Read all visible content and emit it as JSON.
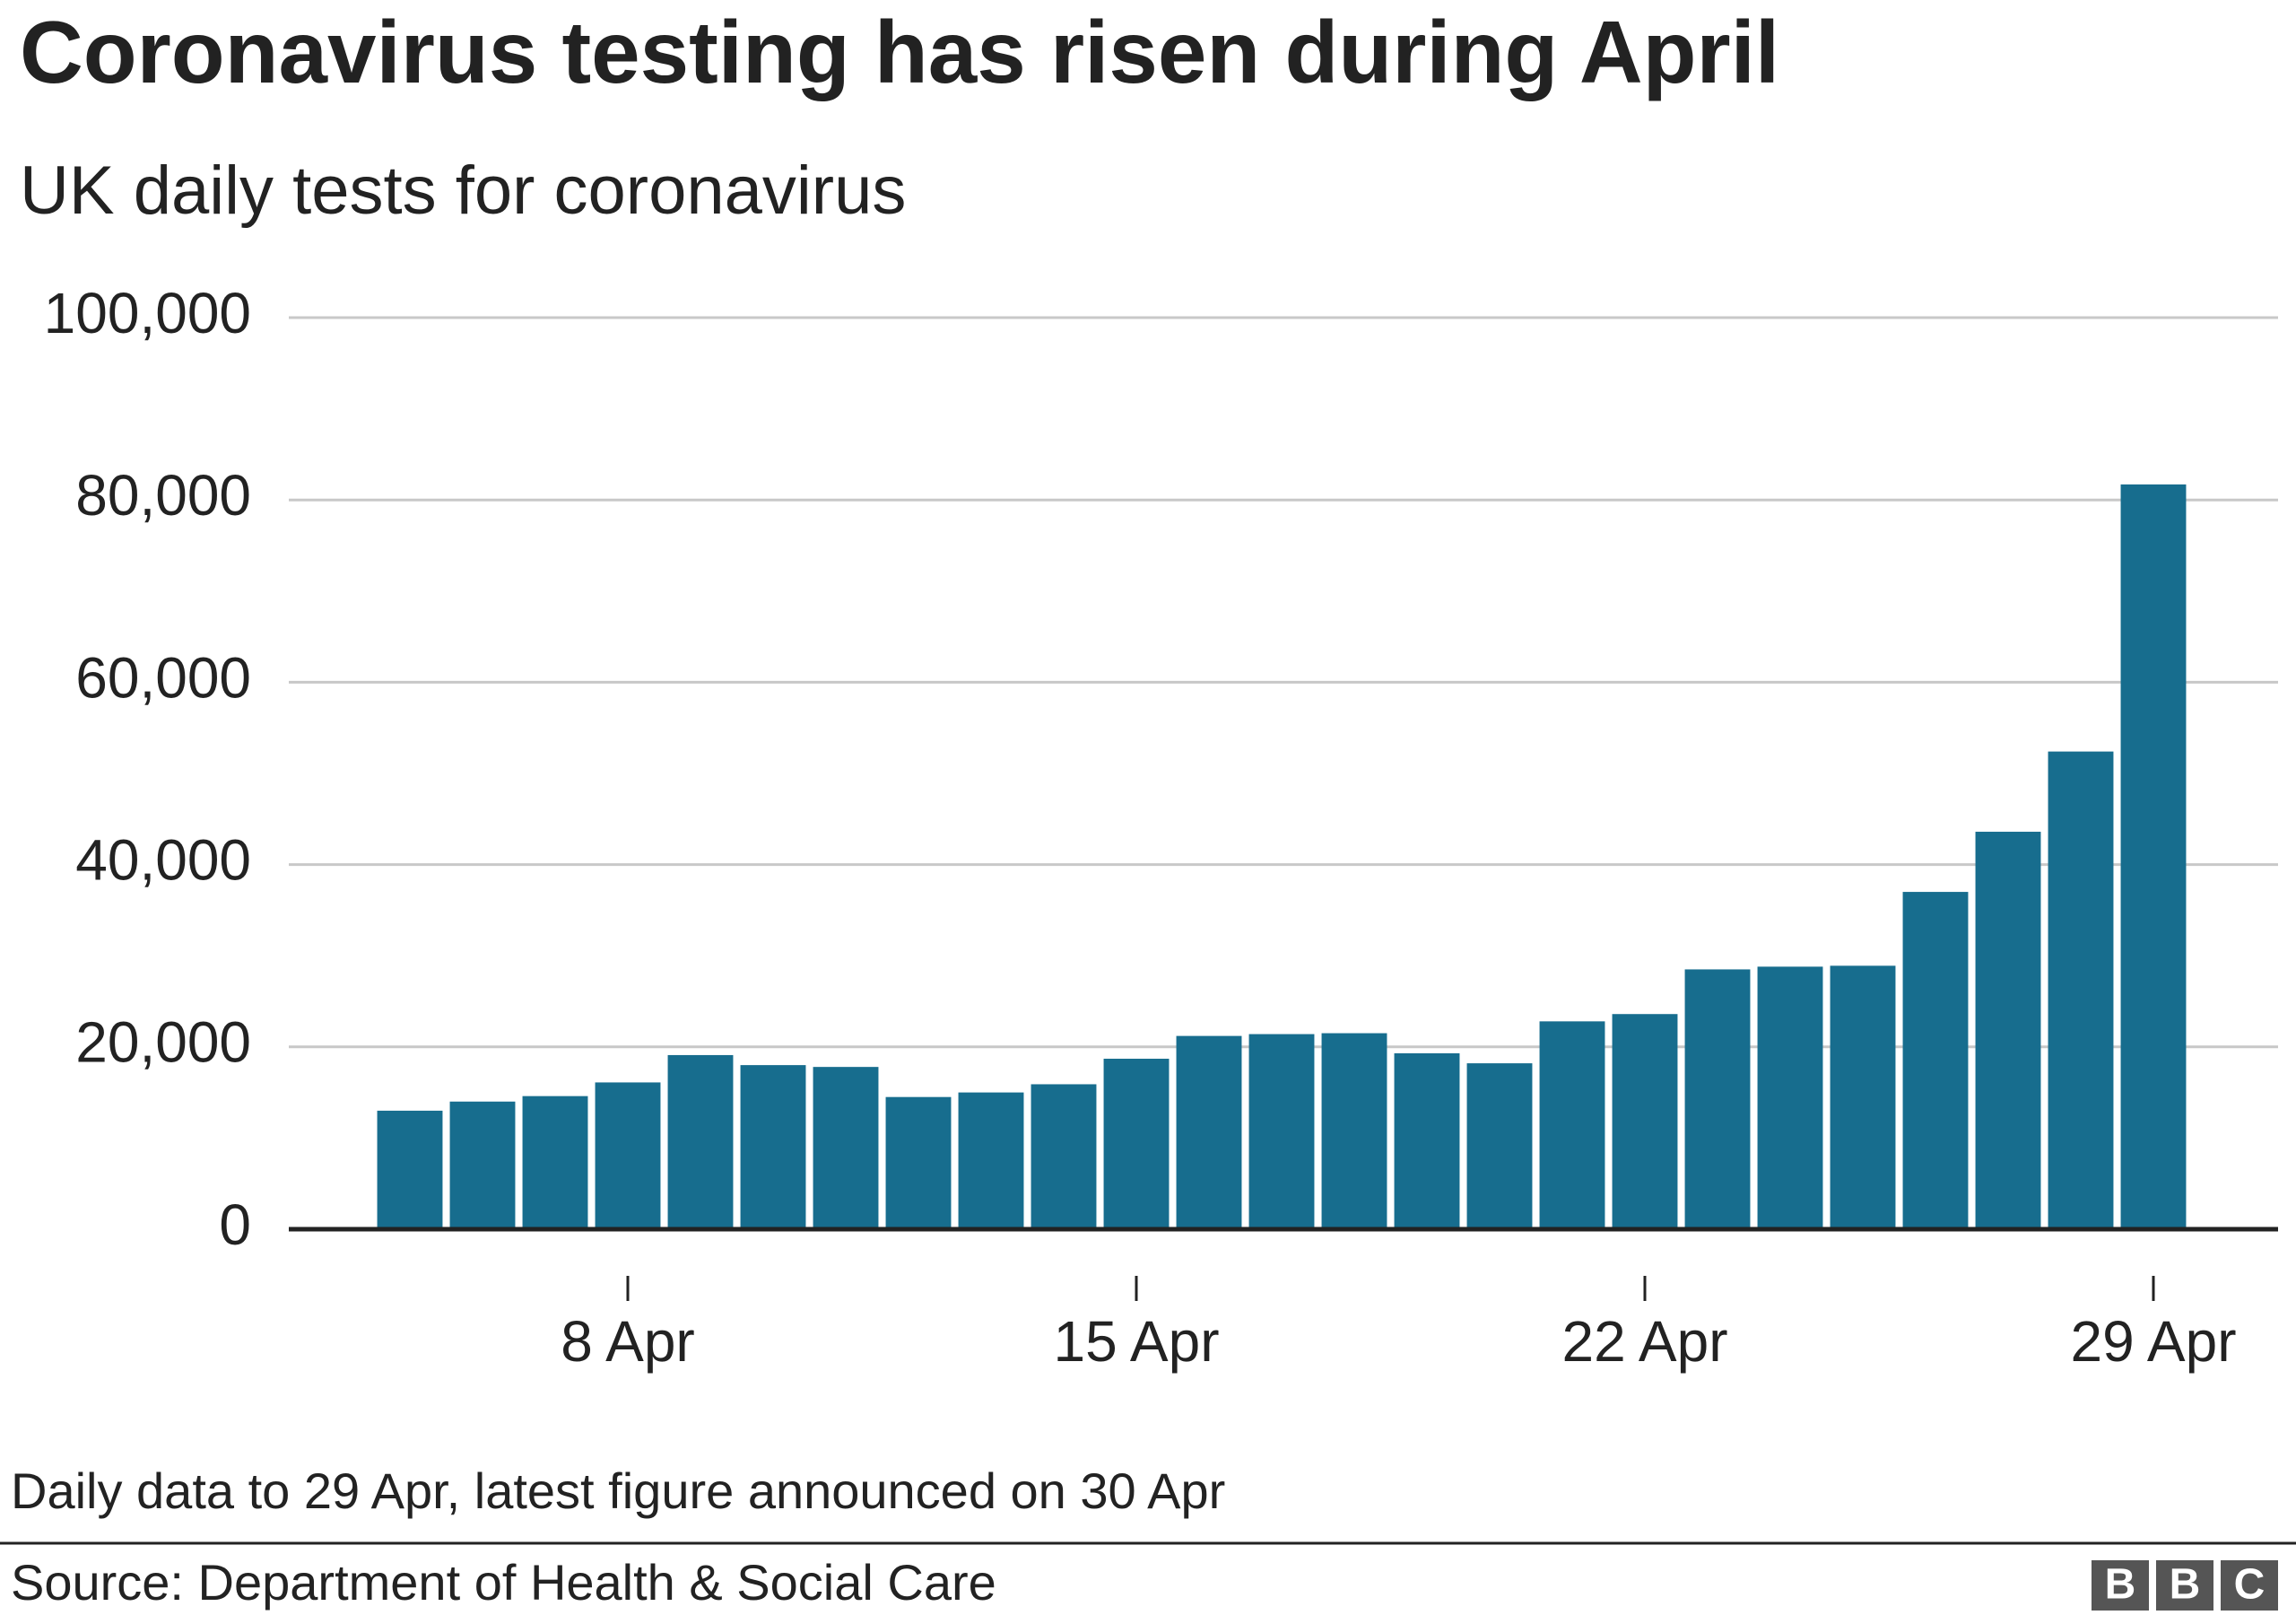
{
  "chart_data": {
    "type": "bar",
    "title": "Coronavirus testing has risen during April",
    "subtitle": "UK daily tests for coronavirus",
    "categories": [
      null,
      null,
      null,
      "8 Apr",
      null,
      null,
      null,
      null,
      null,
      null,
      "15 Apr",
      null,
      null,
      null,
      null,
      null,
      null,
      "22 Apr",
      null,
      null,
      null,
      null,
      null,
      null,
      "29 Apr"
    ],
    "values": [
      13000,
      14000,
      14600,
      16100,
      19100,
      18000,
      17800,
      14500,
      15000,
      15900,
      18700,
      21200,
      21400,
      21500,
      19300,
      18200,
      22800,
      23600,
      28500,
      28800,
      28900,
      37000,
      43600,
      52400,
      81700
    ],
    "color": "#176d8e",
    "ylim": [
      0,
      100000
    ],
    "yticks": [
      {
        "value": 0,
        "label": "0"
      },
      {
        "value": 20000,
        "label": "20,000"
      },
      {
        "value": 40000,
        "label": "40,000"
      },
      {
        "value": 60000,
        "label": "60,000"
      },
      {
        "value": 80000,
        "label": "80,000"
      },
      {
        "value": 100000,
        "label": "100,000"
      }
    ],
    "grid": true,
    "note": "Daily data to 29 Apr, latest figure announced on 30 Apr",
    "source": "Source: Department of Health & Social Care",
    "logo": [
      "B",
      "B",
      "C"
    ]
  }
}
